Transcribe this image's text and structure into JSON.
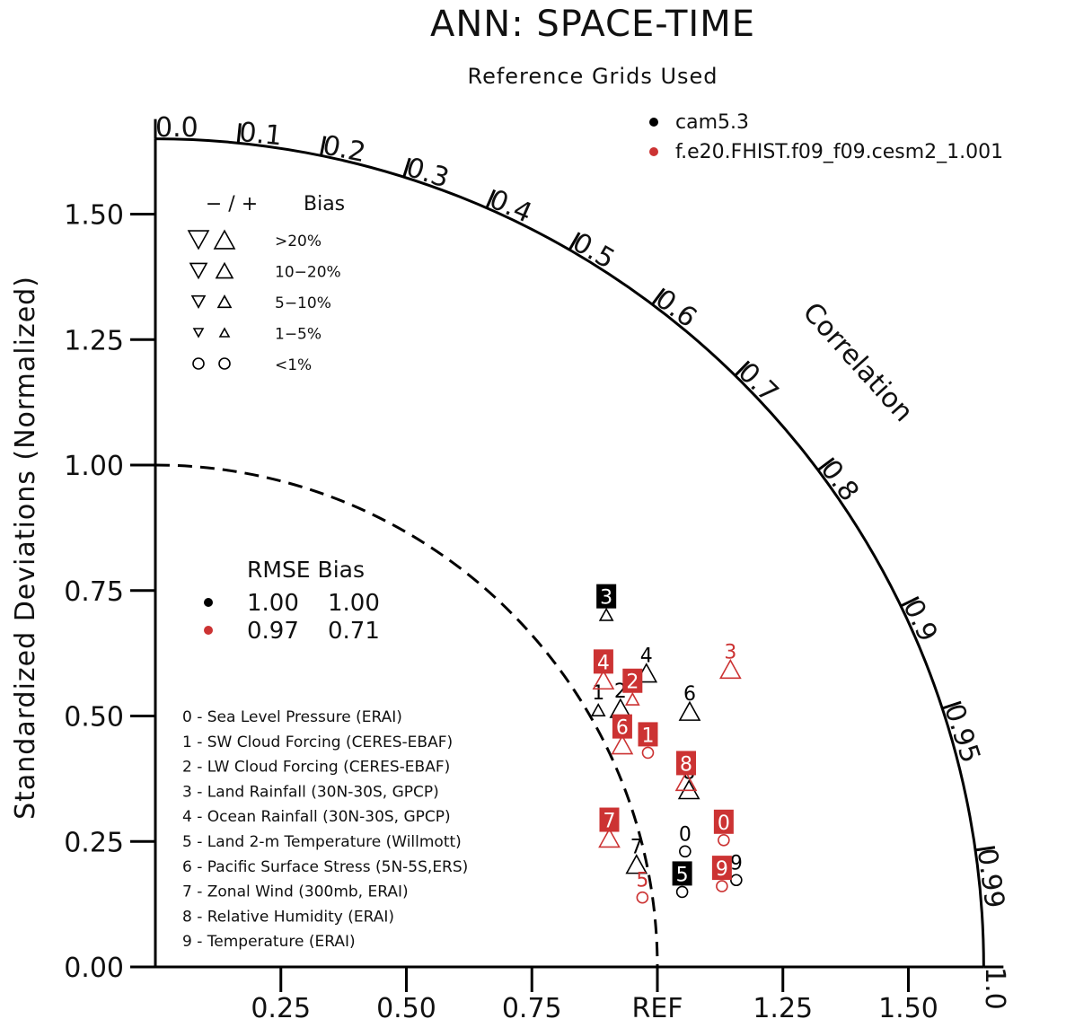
{
  "chart_data": {
    "type": "scatter",
    "subtype": "taylor-diagram",
    "title": "ANN: SPACE-TIME",
    "subtitle": "Reference Grids Used",
    "ylabel": "Standardized Deviations (Normalized)",
    "radial_label": "Correlation",
    "ylim": [
      0,
      1.65
    ],
    "y_ticks": [
      "0.00",
      "0.25",
      "0.50",
      "0.75",
      "1.00",
      "1.25",
      "1.50"
    ],
    "x_ticks": [
      "0.25",
      "0.50",
      "0.75",
      "REF",
      "1.25",
      "1.50"
    ],
    "correlation_ticks": [
      "0.0",
      "0.1",
      "0.2",
      "0.3",
      "0.4",
      "0.5",
      "0.6",
      "0.7",
      "0.8",
      "0.9",
      "0.95",
      "0.99",
      "1.0"
    ],
    "series": [
      {
        "name": "cam5.3",
        "color": "#000000",
        "points": [
          {
            "case": "0",
            "ratio": 1.08,
            "corr": 0.977,
            "bias": "circle",
            "boxed": false
          },
          {
            "case": "1",
            "ratio": 1.02,
            "corr": 0.865,
            "bias": "up-small",
            "boxed": false
          },
          {
            "case": "2",
            "ratio": 1.06,
            "corr": 0.874,
            "bias": "up-large",
            "boxed": false
          },
          {
            "case": "3",
            "ratio": 1.14,
            "corr": 0.788,
            "bias": "up-small",
            "boxed": true
          },
          {
            "case": "4",
            "ratio": 1.14,
            "corr": 0.858,
            "bias": "up-large",
            "boxed": false
          },
          {
            "case": "5",
            "ratio": 1.06,
            "corr": 0.99,
            "bias": "circle",
            "boxed": true
          },
          {
            "case": "6",
            "ratio": 1.18,
            "corr": 0.902,
            "bias": "up-large",
            "boxed": false
          },
          {
            "case": "7",
            "ratio": 0.98,
            "corr": 0.978,
            "bias": "up-large",
            "boxed": false
          },
          {
            "case": "8",
            "ratio": 1.12,
            "corr": 0.949,
            "bias": "up-large",
            "boxed": false
          },
          {
            "case": "9",
            "ratio": 1.17,
            "corr": 0.989,
            "bias": "circle",
            "boxed": false
          }
        ]
      },
      {
        "name": "f.e20.FHIST.f09_f09.cesm2_1.001",
        "color": "#cc3333",
        "points": [
          {
            "case": "0",
            "ratio": 1.16,
            "corr": 0.976,
            "bias": "circle",
            "boxed": true
          },
          {
            "case": "1",
            "ratio": 1.07,
            "corr": 0.917,
            "bias": "circle",
            "boxed": true
          },
          {
            "case": "2",
            "ratio": 1.09,
            "corr": 0.872,
            "bias": "up-small",
            "boxed": true
          },
          {
            "case": "3",
            "ratio": 1.29,
            "corr": 0.888,
            "bias": "up-large",
            "boxed": false
          },
          {
            "case": "4",
            "ratio": 1.06,
            "corr": 0.842,
            "bias": "up-large",
            "boxed": true
          },
          {
            "case": "5",
            "ratio": 0.98,
            "corr": 0.99,
            "bias": "circle",
            "boxed": false
          },
          {
            "case": "6",
            "ratio": 1.03,
            "corr": 0.903,
            "bias": "up-large",
            "boxed": true
          },
          {
            "case": "7",
            "ratio": 0.94,
            "corr": 0.962,
            "bias": "up-large",
            "boxed": true
          },
          {
            "case": "8",
            "ratio": 1.12,
            "corr": 0.944,
            "bias": "up-large",
            "boxed": true
          },
          {
            "case": "9",
            "ratio": 1.14,
            "corr": 0.99,
            "bias": "circle",
            "boxed": true
          }
        ]
      }
    ],
    "cases": [
      "0 - Sea Level Pressure (ERAI)",
      "1 - SW Cloud Forcing (CERES-EBAF)",
      "2 - LW Cloud Forcing (CERES-EBAF)",
      "3 - Land Rainfall (30N-30S, GPCP)",
      "4 - Ocean Rainfall (30N-30S, GPCP)",
      "5 - Land 2-m Temperature (Willmott)",
      "6 - Pacific Surface Stress (5N-5S,ERS)",
      "7 - Zonal Wind (300mb, ERAI)",
      "8 - Relative Humidity (ERAI)",
      "9 - Temperature (ERAI)"
    ],
    "bias_legend": {
      "header_sign": "− / +",
      "header_label": "Bias",
      "rows": [
        ">20%",
        "10−20%",
        "5−10%",
        "1−5%",
        "<1%"
      ]
    },
    "stats_table": {
      "header": "RMSE Bias",
      "rows": [
        {
          "color": "#000000",
          "rmse": "1.00",
          "bias": "1.00"
        },
        {
          "color": "#cc3333",
          "rmse": "0.97",
          "bias": "0.71"
        }
      ]
    }
  },
  "colors": {
    "black": "#000000",
    "red": "#cc3333",
    "box_text": "#ffffff"
  }
}
